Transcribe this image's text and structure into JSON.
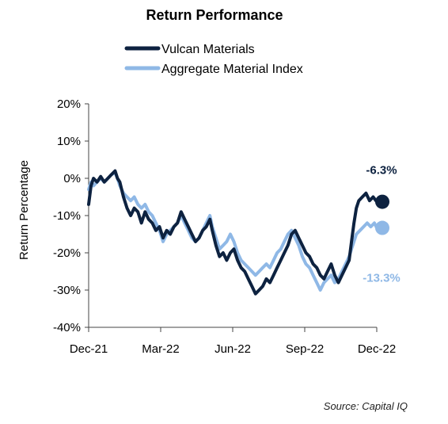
{
  "chart_data": {
    "type": "line",
    "title": "Return Performance",
    "ylabel": "Return Percentage",
    "xlabel": "",
    "ylim": [
      -40,
      20
    ],
    "yticks": [
      20,
      10,
      0,
      -10,
      -20,
      -30,
      -40
    ],
    "ytick_labels": [
      "20%",
      "10%",
      "0%",
      "-10%",
      "-20%",
      "-30%",
      "-40%"
    ],
    "xlim": [
      0,
      12
    ],
    "xticks": [
      0,
      3,
      6,
      9,
      12
    ],
    "xtick_labels": [
      "Dec-21",
      "Mar-22",
      "Jun-22",
      "Sep-22",
      "Dec-22"
    ],
    "grid": false,
    "legend_position": "top-center",
    "source": "Source: Capital IQ",
    "series": [
      {
        "name": "Vulcan Materials",
        "color": "#0d2240",
        "end_label": "-6.3%",
        "end_value": -6.3,
        "points": [
          [
            0.0,
            -7
          ],
          [
            0.1,
            -2
          ],
          [
            0.2,
            0
          ],
          [
            0.35,
            -1
          ],
          [
            0.5,
            0.5
          ],
          [
            0.65,
            -1
          ],
          [
            0.8,
            0
          ],
          [
            0.95,
            1
          ],
          [
            1.1,
            2
          ],
          [
            1.2,
            0
          ],
          [
            1.3,
            -1
          ],
          [
            1.45,
            -5
          ],
          [
            1.6,
            -8
          ],
          [
            1.75,
            -10
          ],
          [
            1.9,
            -8
          ],
          [
            2.05,
            -9
          ],
          [
            2.2,
            -12
          ],
          [
            2.35,
            -9
          ],
          [
            2.5,
            -11
          ],
          [
            2.65,
            -12
          ],
          [
            2.8,
            -14
          ],
          [
            2.95,
            -13
          ],
          [
            3.1,
            -16
          ],
          [
            3.25,
            -14
          ],
          [
            3.4,
            -15
          ],
          [
            3.55,
            -13
          ],
          [
            3.7,
            -12
          ],
          [
            3.85,
            -9
          ],
          [
            4.0,
            -11
          ],
          [
            4.15,
            -13
          ],
          [
            4.3,
            -15
          ],
          [
            4.45,
            -17
          ],
          [
            4.6,
            -16
          ],
          [
            4.75,
            -14
          ],
          [
            4.9,
            -13
          ],
          [
            5.05,
            -11
          ],
          [
            5.15,
            -14
          ],
          [
            5.3,
            -18
          ],
          [
            5.45,
            -21
          ],
          [
            5.6,
            -20
          ],
          [
            5.75,
            -22
          ],
          [
            5.9,
            -20
          ],
          [
            6.05,
            -19
          ],
          [
            6.2,
            -22
          ],
          [
            6.35,
            -24
          ],
          [
            6.5,
            -25
          ],
          [
            6.65,
            -27
          ],
          [
            6.8,
            -29
          ],
          [
            6.95,
            -31
          ],
          [
            7.1,
            -30
          ],
          [
            7.25,
            -29
          ],
          [
            7.4,
            -27
          ],
          [
            7.55,
            -28
          ],
          [
            7.7,
            -26
          ],
          [
            7.85,
            -24
          ],
          [
            8.0,
            -22
          ],
          [
            8.15,
            -20
          ],
          [
            8.3,
            -18
          ],
          [
            8.45,
            -15
          ],
          [
            8.6,
            -14
          ],
          [
            8.75,
            -16
          ],
          [
            8.9,
            -18
          ],
          [
            9.05,
            -20
          ],
          [
            9.2,
            -21
          ],
          [
            9.35,
            -23
          ],
          [
            9.5,
            -24
          ],
          [
            9.65,
            -26
          ],
          [
            9.8,
            -27
          ],
          [
            9.95,
            -25
          ],
          [
            10.1,
            -23
          ],
          [
            10.25,
            -26
          ],
          [
            10.4,
            -28
          ],
          [
            10.55,
            -26
          ],
          [
            10.7,
            -24
          ],
          [
            10.85,
            -22
          ],
          [
            10.95,
            -17
          ],
          [
            11.05,
            -12
          ],
          [
            11.15,
            -8
          ],
          [
            11.25,
            -6
          ],
          [
            11.4,
            -5
          ],
          [
            11.55,
            -4
          ],
          [
            11.7,
            -6
          ],
          [
            11.85,
            -5
          ],
          [
            12.0,
            -6.3
          ]
        ]
      },
      {
        "name": "Aggregate Material Index",
        "color": "#8fb8e6",
        "end_label": "-13.3%",
        "end_value": -13.3,
        "points": [
          [
            0.0,
            -3
          ],
          [
            0.1,
            -1
          ],
          [
            0.2,
            -2
          ],
          [
            0.35,
            -1
          ],
          [
            0.5,
            0
          ],
          [
            0.65,
            -1
          ],
          [
            0.8,
            0
          ],
          [
            0.95,
            1
          ],
          [
            1.1,
            1.5
          ],
          [
            1.2,
            0
          ],
          [
            1.3,
            -2
          ],
          [
            1.45,
            -4
          ],
          [
            1.6,
            -5
          ],
          [
            1.75,
            -6
          ],
          [
            1.9,
            -5
          ],
          [
            2.05,
            -7
          ],
          [
            2.2,
            -8
          ],
          [
            2.35,
            -7
          ],
          [
            2.5,
            -9
          ],
          [
            2.65,
            -10
          ],
          [
            2.8,
            -12
          ],
          [
            2.95,
            -14
          ],
          [
            3.1,
            -17
          ],
          [
            3.25,
            -15
          ],
          [
            3.4,
            -14
          ],
          [
            3.55,
            -13
          ],
          [
            3.7,
            -12
          ],
          [
            3.85,
            -10
          ],
          [
            4.0,
            -12
          ],
          [
            4.15,
            -14
          ],
          [
            4.3,
            -16
          ],
          [
            4.45,
            -17
          ],
          [
            4.6,
            -16
          ],
          [
            4.75,
            -14
          ],
          [
            4.9,
            -12
          ],
          [
            5.05,
            -10
          ],
          [
            5.15,
            -13
          ],
          [
            5.3,
            -16
          ],
          [
            5.45,
            -19
          ],
          [
            5.6,
            -18
          ],
          [
            5.75,
            -17
          ],
          [
            5.9,
            -15
          ],
          [
            6.05,
            -17
          ],
          [
            6.2,
            -20
          ],
          [
            6.35,
            -22
          ],
          [
            6.5,
            -23
          ],
          [
            6.65,
            -24
          ],
          [
            6.8,
            -25
          ],
          [
            6.95,
            -26
          ],
          [
            7.1,
            -25
          ],
          [
            7.25,
            -24
          ],
          [
            7.4,
            -23
          ],
          [
            7.55,
            -24
          ],
          [
            7.7,
            -22
          ],
          [
            7.85,
            -20
          ],
          [
            8.0,
            -19
          ],
          [
            8.15,
            -17
          ],
          [
            8.3,
            -15
          ],
          [
            8.45,
            -14
          ],
          [
            8.6,
            -16
          ],
          [
            8.75,
            -18
          ],
          [
            8.9,
            -21
          ],
          [
            9.05,
            -23
          ],
          [
            9.2,
            -24
          ],
          [
            9.35,
            -26
          ],
          [
            9.5,
            -28
          ],
          [
            9.65,
            -30
          ],
          [
            9.8,
            -28
          ],
          [
            9.95,
            -27
          ],
          [
            10.1,
            -26
          ],
          [
            10.25,
            -28
          ],
          [
            10.4,
            -27
          ],
          [
            10.55,
            -25
          ],
          [
            10.7,
            -23
          ],
          [
            10.85,
            -21
          ],
          [
            10.95,
            -19
          ],
          [
            11.05,
            -17
          ],
          [
            11.15,
            -15
          ],
          [
            11.3,
            -14
          ],
          [
            11.45,
            -13
          ],
          [
            11.6,
            -12
          ],
          [
            11.75,
            -13
          ],
          [
            11.9,
            -12
          ],
          [
            12.0,
            -13.3
          ]
        ]
      }
    ]
  }
}
